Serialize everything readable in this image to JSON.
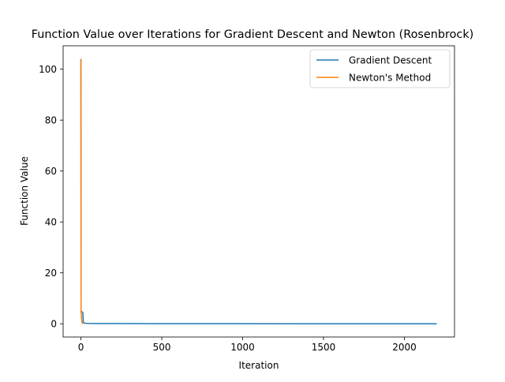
{
  "chart_data": {
    "type": "line",
    "title": "Function Value over Iterations for Gradient Descent and Newton (Rosenbrock)",
    "xlabel": "Iteration",
    "ylabel": "Function Value",
    "xlim": [
      -110,
      2310
    ],
    "ylim": [
      -5.2,
      109.2
    ],
    "xticks": [
      0,
      500,
      1000,
      1500,
      2000
    ],
    "yticks": [
      0,
      20,
      40,
      60,
      80,
      100
    ],
    "grid": false,
    "legend": "top-right",
    "series": [
      {
        "name": "Gradient Descent",
        "color": "#1f77b4",
        "x": [
          0,
          1,
          2,
          3,
          4,
          5,
          6,
          8,
          10,
          12,
          15,
          20,
          30,
          50,
          100,
          500,
          1000,
          1500,
          2000,
          2200
        ],
        "y": [
          104,
          5.2,
          5.0,
          4.9,
          4.8,
          4.8,
          4.7,
          4.6,
          4.5,
          4.3,
          0.5,
          0.3,
          0.2,
          0.15,
          0.1,
          0.05,
          0.02,
          0.01,
          0.005,
          0.0
        ]
      },
      {
        "name": "Newton's Method",
        "color": "#ff7f0e",
        "x": [
          0,
          1,
          2,
          3,
          4,
          5,
          6,
          7,
          8,
          10,
          12
        ],
        "y": [
          104,
          4.5,
          3.8,
          3.0,
          2.2,
          1.5,
          0.9,
          0.5,
          0.2,
          0.05,
          0.0
        ]
      }
    ]
  }
}
